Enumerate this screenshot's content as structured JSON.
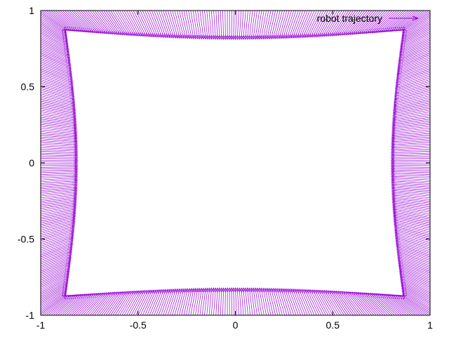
{
  "chart_data": {
    "type": "vector_field",
    "title": "",
    "xlabel": "",
    "ylabel": "",
    "xlim": [
      -1,
      1
    ],
    "ylim": [
      -1,
      1
    ],
    "xticks": [
      -1,
      -0.5,
      0,
      0.5,
      1
    ],
    "yticks": [
      -1,
      -0.5,
      0,
      0.5,
      1
    ],
    "xtick_labels": [
      "-1",
      "-0.5",
      "0",
      "0.5",
      "1"
    ],
    "ytick_labels": [
      "-1",
      "-0.5",
      "0",
      "0.5",
      "1"
    ],
    "grid": false,
    "legend_position": "top-right",
    "series": [
      {
        "name": "robot trajectory",
        "color": "#9400d3",
        "style": "arrows",
        "description_of_field": "arrows start on the outer boundary square and point inward to a slightly pinched inner rectangle",
        "inner_boundary": {
          "corners": [
            [
              -0.87,
              0.87
            ],
            [
              0.86,
              0.87
            ],
            [
              0.86,
              -0.87
            ],
            [
              -0.87,
              -0.87
            ]
          ],
          "edge_mid_extent": {
            "top": 0.81,
            "bottom": -0.82,
            "left": -0.81,
            "right": 0.8
          }
        },
        "outer_boundary": [
          [
            -1,
            1
          ],
          [
            1,
            1
          ],
          [
            1,
            -1
          ],
          [
            -1,
            -1
          ]
        ]
      }
    ]
  }
}
